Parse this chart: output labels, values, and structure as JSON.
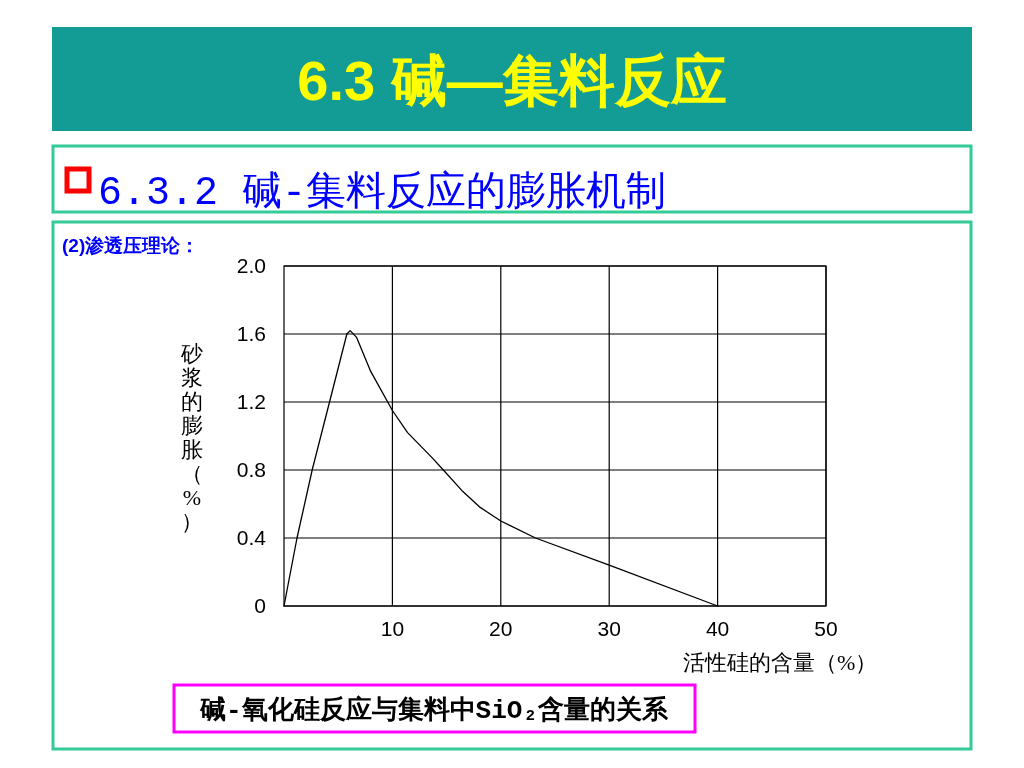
{
  "chart_data": {
    "type": "line",
    "title": "6.3 碱—集料反应",
    "subtitle": "6.3.2 碱-集料反应的膨胀机制",
    "annotations": [
      "(2)渗透压理论：",
      "碱-氧化硅反应与集料中SiO₂含量的关系"
    ],
    "xlabel": "活性硅的含量（%）",
    "ylabel": "砂浆的膨胀（%）",
    "x": [
      0,
      1.2,
      2.6,
      4.2,
      5.8,
      6.1,
      6.7,
      8.0,
      10,
      11.4,
      13.7,
      14.7,
      16.4,
      18.1,
      20,
      23.2,
      30,
      40
    ],
    "series": [
      {
        "color": "#000000",
        "values": [
          0,
          0.4,
          0.8,
          1.2,
          1.6,
          1.62,
          1.58,
          1.38,
          1.15,
          1.02,
          0.87,
          0.8,
          0.68,
          0.58,
          0.5,
          0.4,
          0.24,
          0
        ]
      }
    ],
    "xlim": [
      0,
      50
    ],
    "xticks": [
      10,
      20,
      30,
      40,
      50
    ],
    "ylim": [
      0,
      2
    ],
    "yticks": [
      0,
      0.4,
      0.8,
      1.2,
      1.6,
      {
        "value": 2,
        "label": "2.0"
      }
    ],
    "grid": true,
    "line_style": "solid"
  }
}
